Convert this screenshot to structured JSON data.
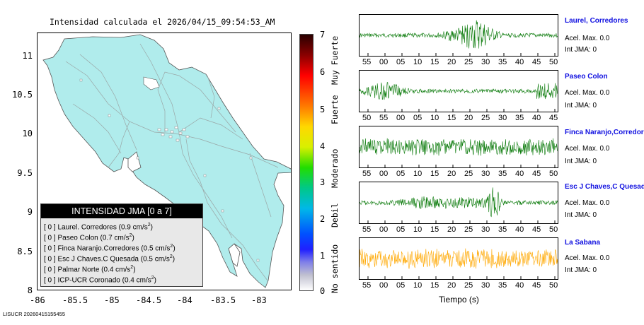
{
  "map": {
    "title": "Intensidad calculada el 2026/04/15_09:54:53_AM",
    "y_ticks": [
      "11",
      "10.5",
      "10",
      "9.5",
      "9",
      "8.5",
      "8"
    ],
    "x_ticks": [
      "-86",
      "-85.5",
      "-85",
      "-84.5",
      "-84",
      "-83.5",
      "-83"
    ],
    "land_color": "#b0ecec",
    "road_color": "#9aa6a6"
  },
  "legend": {
    "header": "INTENSIDAD JMA [0 a 7]",
    "rows": [
      {
        "prefix": "[ 0 ]",
        "text": "Laurel. Corredores (0.9 cm/s",
        "suffix": ")"
      },
      {
        "prefix": "[ 0 ]",
        "text": "Paseo Colon (0.7 cm/s",
        "suffix": ")"
      },
      {
        "prefix": "[ 0 ]",
        "text": "Finca Naranjo.Corredores (0.5 cm/s",
        "suffix": ")"
      },
      {
        "prefix": "[ 0 ]",
        "text": "Esc J Chaves.C Quesada (0.5 cm/s",
        "suffix": ")"
      },
      {
        "prefix": "[ 0 ]",
        "text": "Palmar Norte (0.4 cm/s",
        "suffix": ")"
      },
      {
        "prefix": "[ 0 ]",
        "text": "ICP-UCR Coronado (0.4 cm/s",
        "suffix": ")"
      }
    ],
    "superscript": "2"
  },
  "scale": {
    "numbers": [
      "7",
      "6",
      "5",
      "4",
      "3",
      "2",
      "1",
      "0"
    ],
    "words": [
      "Muy Fuerte",
      "Fuerte",
      "Moderado",
      "Debil",
      "No sentido"
    ]
  },
  "traces": [
    {
      "station": "Laurel, Corredores",
      "acel": "Acel. Max. 0.0",
      "int": "Int JMA: 0",
      "ticks": [
        "55",
        "00",
        "05",
        "10",
        "15",
        "20",
        "25",
        "30",
        "35",
        "40",
        "45",
        "50"
      ],
      "color": "#0a7a0a"
    },
    {
      "station": "Paseo Colon",
      "acel": "Acel. Max. 0.0",
      "int": "Int JMA: 0",
      "ticks": [
        "50",
        "55",
        "00",
        "05",
        "10",
        "15",
        "20",
        "25",
        "30",
        "35",
        "40",
        "45"
      ],
      "color": "#0a7a0a"
    },
    {
      "station": "Finca Naranjo,Corredores",
      "acel": "Acel. Max. 0.0",
      "int": "Int JMA: 0",
      "ticks": [
        "55",
        "00",
        "05",
        "10",
        "15",
        "20",
        "25",
        "30",
        "35",
        "40",
        "45",
        "50"
      ],
      "color": "#0a7a0a"
    },
    {
      "station": "Esc J Chaves,C Quesada",
      "acel": "Acel. Max. 0.0",
      "int": "Int JMA: 0",
      "ticks": [
        "55",
        "00",
        "05",
        "10",
        "15",
        "20",
        "25",
        "30",
        "35",
        "40",
        "45",
        "50"
      ],
      "color": "#0a7a0a"
    },
    {
      "station": "La Sabana",
      "acel": "Acel. Max. 0.0",
      "int": "Int JMA: 0",
      "ticks": [
        "55",
        "00",
        "05",
        "10",
        "15",
        "20",
        "25",
        "30",
        "35",
        "40",
        "45",
        "50"
      ],
      "color": "#ffa800"
    }
  ],
  "xlabel": "Tiempo (s)",
  "footer": "LISUCR 20260415155455"
}
